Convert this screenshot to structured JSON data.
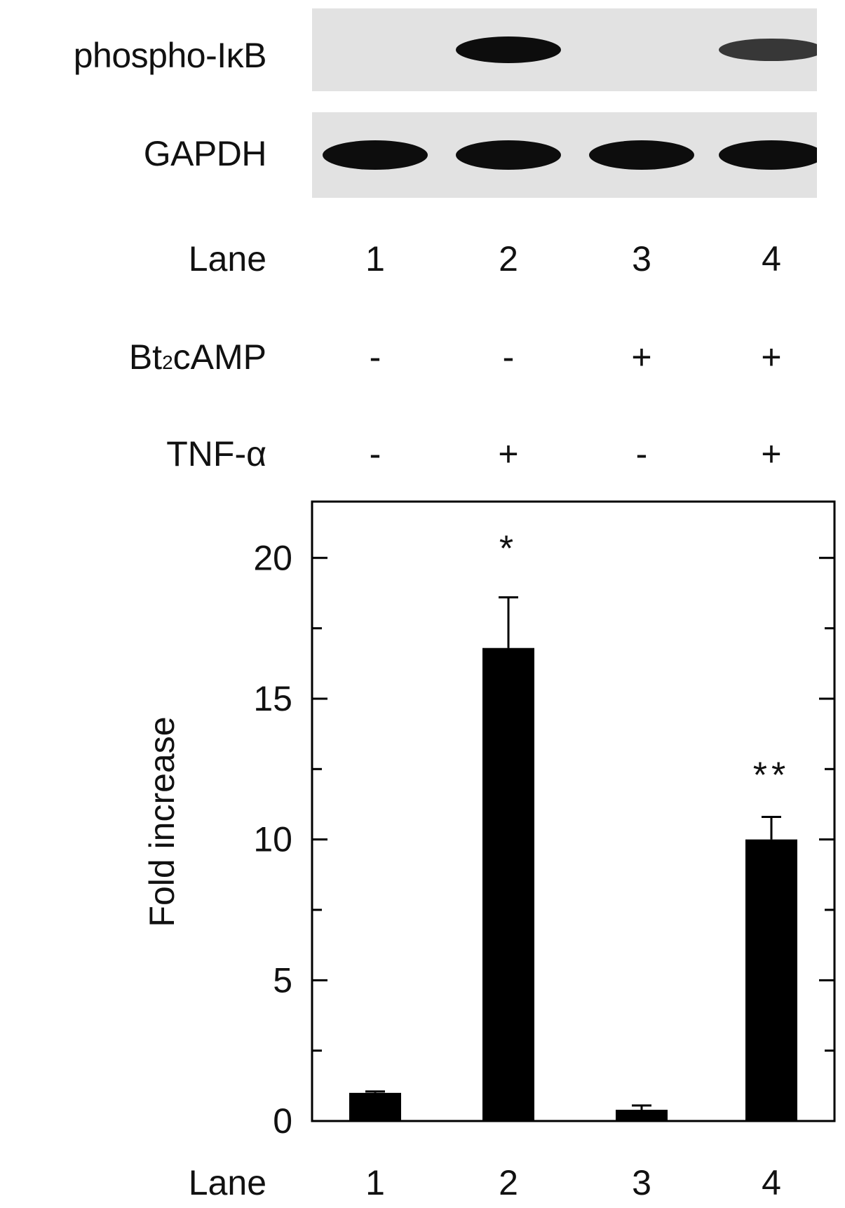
{
  "blots": {
    "phospho": {
      "label": "phospho-IκB",
      "bands": [
        0,
        1,
        0,
        0.7
      ]
    },
    "gapdh": {
      "label": "GAPDH",
      "bands": [
        1,
        1,
        1,
        1
      ]
    }
  },
  "lane_row": {
    "label": "Lane",
    "values": [
      "1",
      "2",
      "3",
      "4"
    ]
  },
  "bt2camp_row": {
    "label_main": "Bt",
    "label_sub": "2",
    "label_rest": "cAMP",
    "values": [
      "-",
      "-",
      "+",
      "+"
    ]
  },
  "tnf_row": {
    "label": "TNF-α",
    "values": [
      "-",
      "+",
      "-",
      "+"
    ]
  },
  "chart_data": {
    "type": "bar",
    "categories": [
      "1",
      "2",
      "3",
      "4"
    ],
    "values": [
      1.0,
      16.8,
      0.4,
      10.0
    ],
    "errors": [
      0.05,
      1.8,
      0.15,
      0.8
    ],
    "annotations": [
      "",
      "*",
      "",
      "**"
    ],
    "xlabel": "Lane",
    "ylabel": "Fold increase",
    "ylim": [
      0,
      22
    ],
    "yticks": [
      0,
      5,
      10,
      15,
      20
    ],
    "bar_color": "#000000",
    "grid": false
  }
}
